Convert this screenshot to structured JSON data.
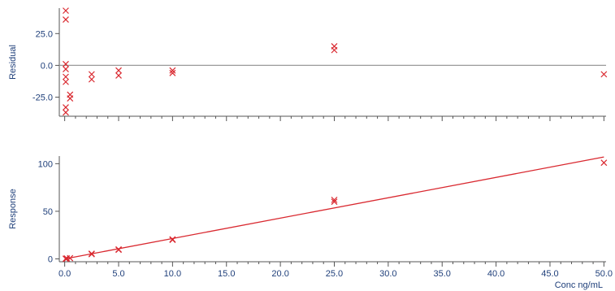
{
  "chart_data": [
    {
      "type": "scatter",
      "title": "",
      "xlabel": "",
      "ylabel": "Residual",
      "xlim": [
        -0.5,
        50.2
      ],
      "ylim": [
        -40,
        45
      ],
      "x_ticks": [
        0,
        5,
        10,
        15,
        20,
        25,
        30,
        35,
        40,
        45,
        50
      ],
      "y_ticks": [
        25,
        0,
        -25
      ],
      "y_tick_labels": [
        "25.0",
        "0.0",
        "-25.0"
      ],
      "reference_line_y": 0,
      "grid": false,
      "series": [
        {
          "marker": "x",
          "color": "#d9282f",
          "points": [
            [
              0.1,
              43
            ],
            [
              0.1,
              36
            ],
            [
              0.1,
              1
            ],
            [
              0.1,
              -3
            ],
            [
              0.1,
              -9
            ],
            [
              0.1,
              -13
            ],
            [
              0.1,
              -33
            ],
            [
              0.1,
              -37
            ],
            [
              0.5,
              -23
            ],
            [
              0.5,
              -26
            ],
            [
              2.5,
              -7
            ],
            [
              2.5,
              -11
            ],
            [
              5,
              -4
            ],
            [
              5,
              -8
            ],
            [
              10,
              -4
            ],
            [
              10,
              -6
            ],
            [
              25,
              15
            ],
            [
              25,
              12
            ],
            [
              50,
              -7
            ]
          ]
        }
      ]
    },
    {
      "type": "scatter",
      "title": "",
      "xlabel": "Conc ng/mL",
      "ylabel": "Response",
      "xlim": [
        -0.5,
        50.2
      ],
      "ylim": [
        -3,
        108
      ],
      "x_ticks": [
        0,
        5,
        10,
        15,
        20,
        25,
        30,
        35,
        40,
        45,
        50
      ],
      "x_tick_labels": [
        "0.0",
        "5.0",
        "10.0",
        "15.0",
        "20.0",
        "25.0",
        "30.0",
        "35.0",
        "40.0",
        "45.0",
        "50.0"
      ],
      "y_ticks": [
        100,
        50,
        0
      ],
      "y_tick_labels": [
        "100",
        "50",
        "0"
      ],
      "grid": false,
      "fit_line": {
        "x": [
          0,
          50
        ],
        "y": [
          0,
          107
        ],
        "color": "#d9282f"
      },
      "series": [
        {
          "marker": "x",
          "color": "#d9282f",
          "points": [
            [
              0.1,
              0.1
            ],
            [
              0.1,
              0.3
            ],
            [
              0.2,
              0.5
            ],
            [
              0.5,
              0.8
            ],
            [
              2.5,
              4.9
            ],
            [
              2.5,
              5.5
            ],
            [
              5,
              10
            ],
            [
              5,
              9.5
            ],
            [
              10,
              20.5
            ],
            [
              10,
              20
            ],
            [
              25,
              62
            ],
            [
              25,
              60
            ],
            [
              50,
              101
            ]
          ]
        }
      ]
    }
  ]
}
